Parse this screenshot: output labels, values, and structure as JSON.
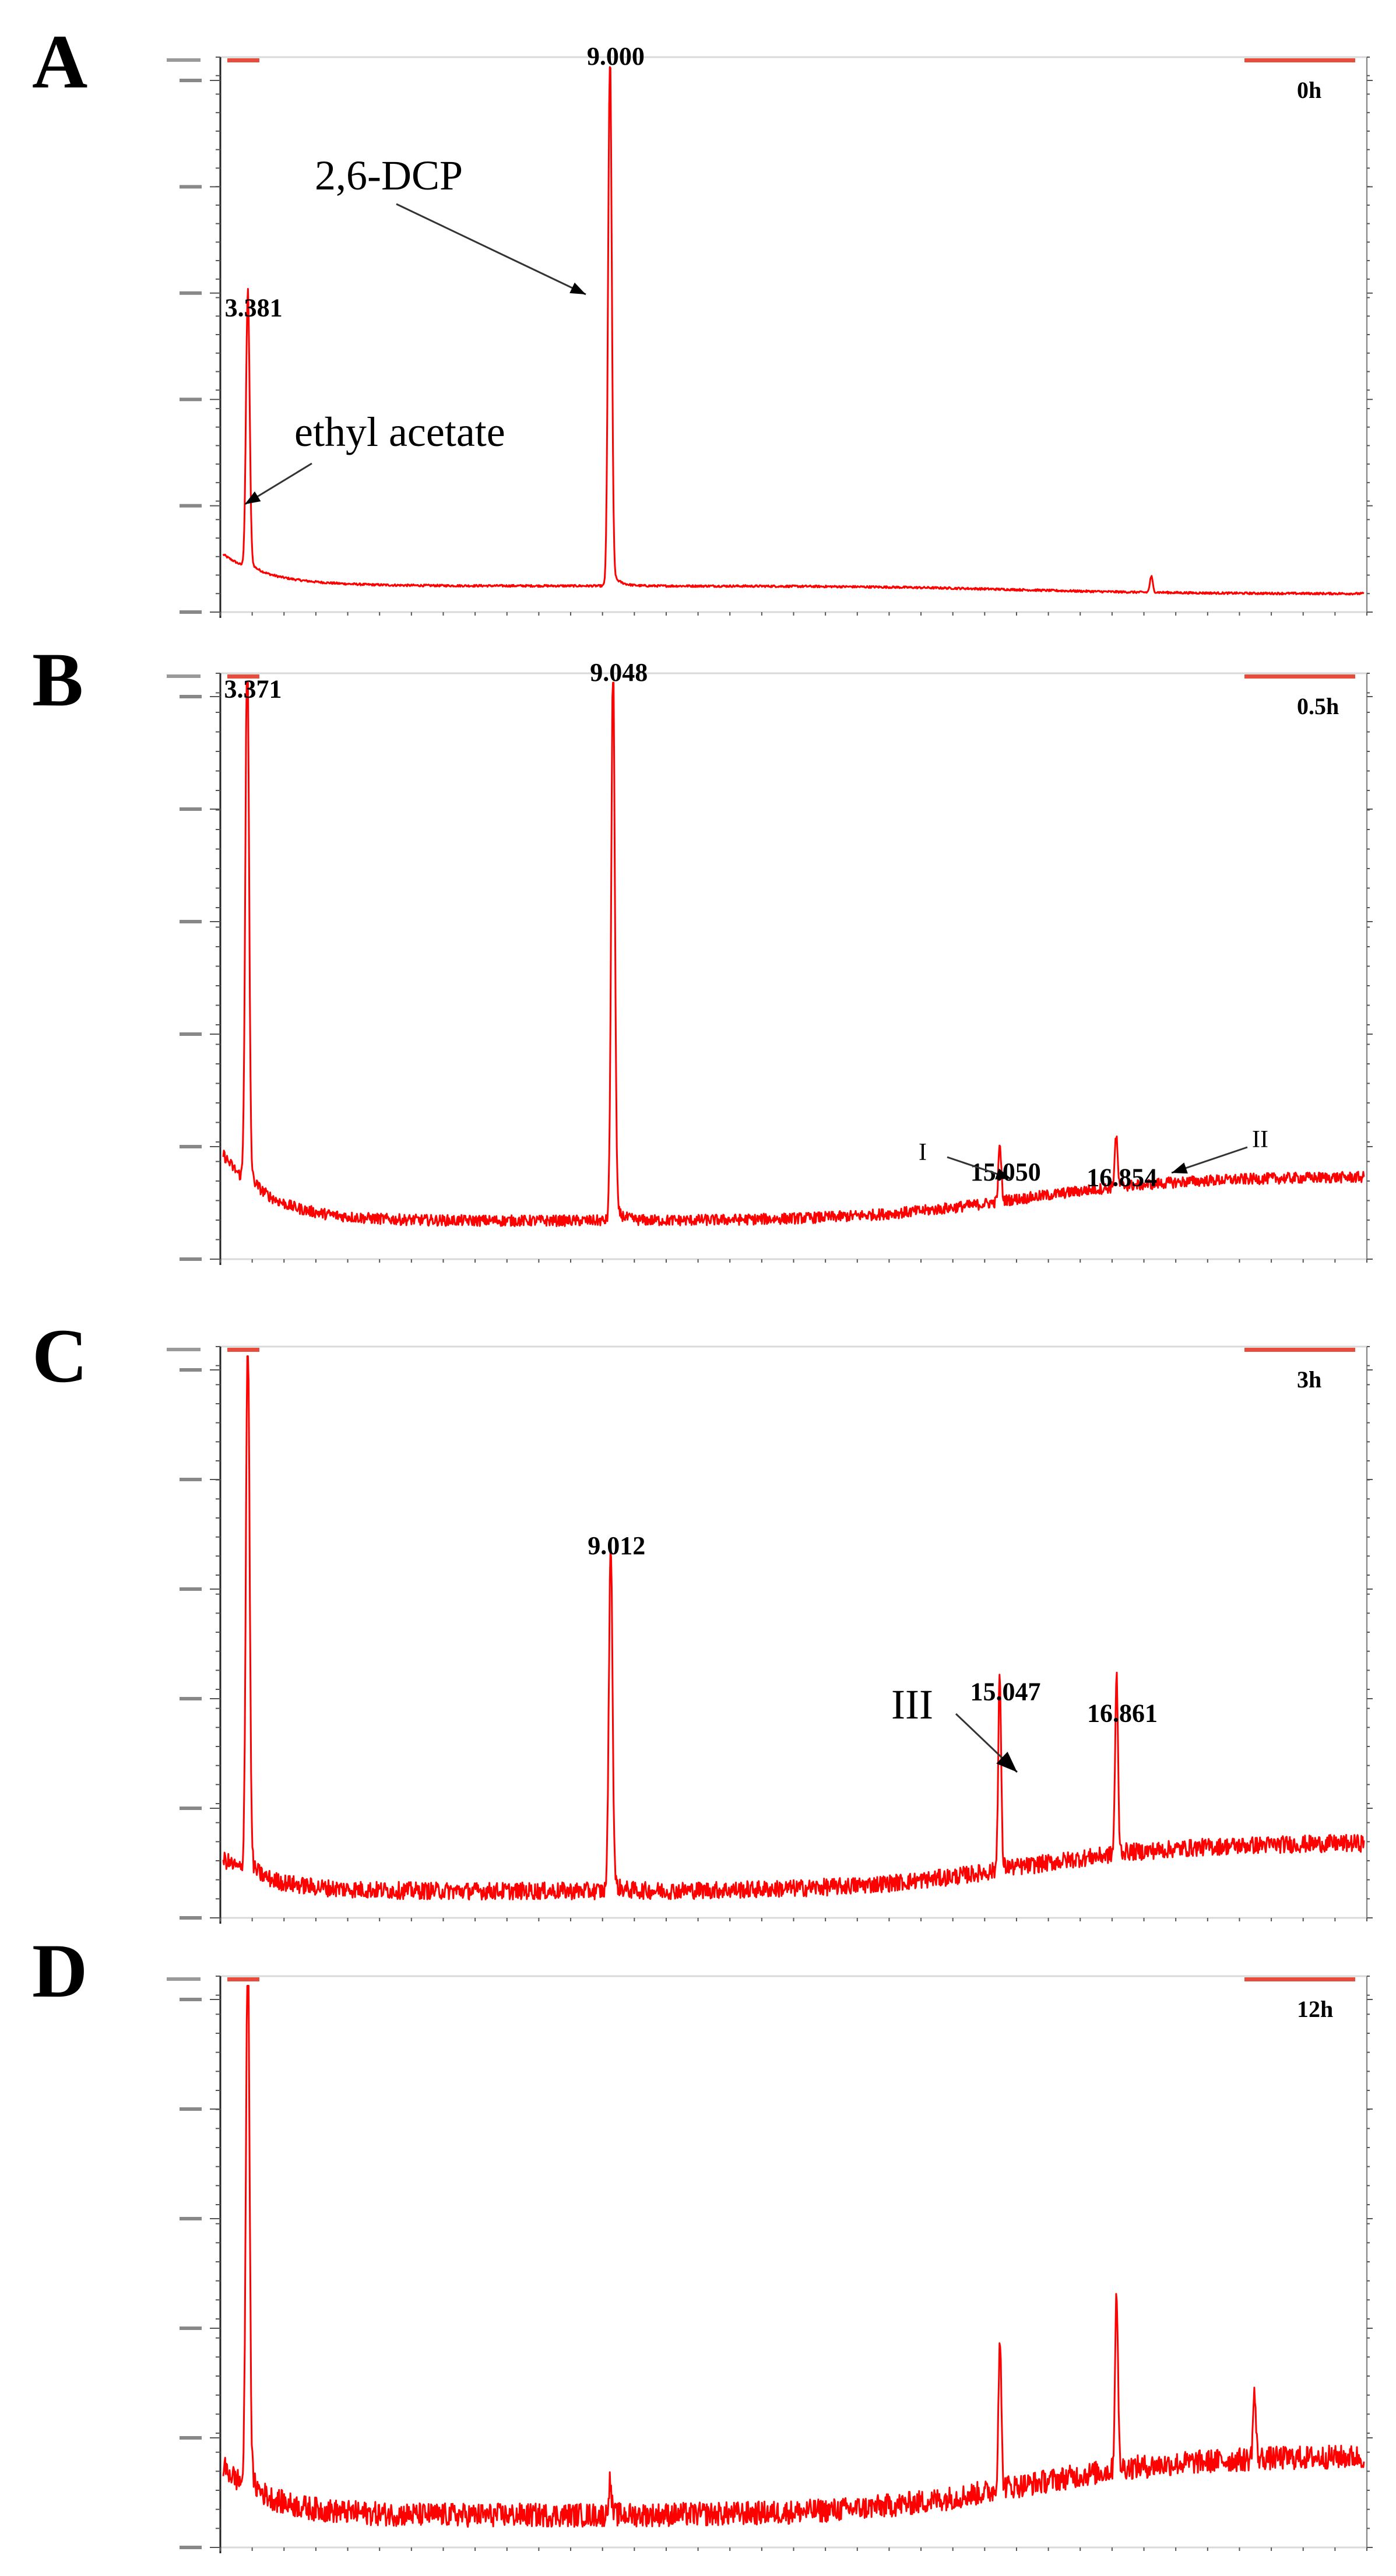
{
  "chart_data": [
    {
      "panel": "A",
      "type": "line",
      "condition": "0h",
      "x_range": [
        3.0,
        20.7
      ],
      "y_range": [
        0,
        100
      ],
      "peaks": [
        {
          "rt": 3.381,
          "height": 52,
          "label": "3.381"
        },
        {
          "rt": 9.0,
          "height": 100,
          "label": "9.000"
        },
        {
          "rt": 17.4,
          "height": 3,
          "label": ""
        }
      ],
      "baseline": {
        "start": 6,
        "mid": 3,
        "end": 1.5,
        "noise": 0.2
      },
      "annotations": [
        {
          "text": "2,6-DCP",
          "target_rt": 9.0
        },
        {
          "text": "ethyl acetate",
          "target_rt": 3.381
        }
      ]
    },
    {
      "panel": "B",
      "type": "line",
      "condition": "0.5h",
      "x_range": [
        3.0,
        20.7
      ],
      "y_range": [
        0,
        100
      ],
      "peaks": [
        {
          "rt": 3.371,
          "height": 97,
          "label": "3.371"
        },
        {
          "rt": 9.048,
          "height": 100,
          "label": "9.048"
        },
        {
          "rt": 15.05,
          "height": 10,
          "label": "15.050"
        },
        {
          "rt": 16.854,
          "height": 9,
          "label": "16.854"
        }
      ],
      "baseline": {
        "start": 12,
        "mid": 5,
        "end": 13,
        "noise": 1.0
      },
      "annotations": [
        {
          "text": "I",
          "target_rt": 15.05
        },
        {
          "text": "II",
          "target_rt": 16.854
        }
      ]
    },
    {
      "panel": "C",
      "type": "line",
      "condition": "3h",
      "x_range": [
        3.0,
        20.7
      ],
      "y_range": [
        0,
        100
      ],
      "peaks": [
        {
          "rt": 3.38,
          "height": 100,
          "label": ""
        },
        {
          "rt": 9.012,
          "height": 63,
          "label": "9.012"
        },
        {
          "rt": 15.047,
          "height": 36,
          "label": "15.047"
        },
        {
          "rt": 16.861,
          "height": 32,
          "label": "16.861"
        }
      ],
      "baseline": {
        "start": 6,
        "mid": 3,
        "end": 12,
        "noise": 1.6
      },
      "annotations": [
        {
          "text": "III",
          "target_rt": 15.047
        }
      ]
    },
    {
      "panel": "D",
      "type": "line",
      "condition": "12h",
      "x_range": [
        3.0,
        20.7
      ],
      "y_range": [
        0,
        100
      ],
      "peaks": [
        {
          "rt": 3.38,
          "height": 100,
          "label": ""
        },
        {
          "rt": 9.0,
          "height": 6,
          "label": ""
        },
        {
          "rt": 15.05,
          "height": 28,
          "label": ""
        },
        {
          "rt": 16.86,
          "height": 33,
          "label": ""
        },
        {
          "rt": 19.0,
          "height": 12,
          "label": ""
        }
      ],
      "baseline": {
        "start": 9,
        "mid": 4,
        "end": 15,
        "noise": 2.2
      },
      "annotations": []
    }
  ]
}
